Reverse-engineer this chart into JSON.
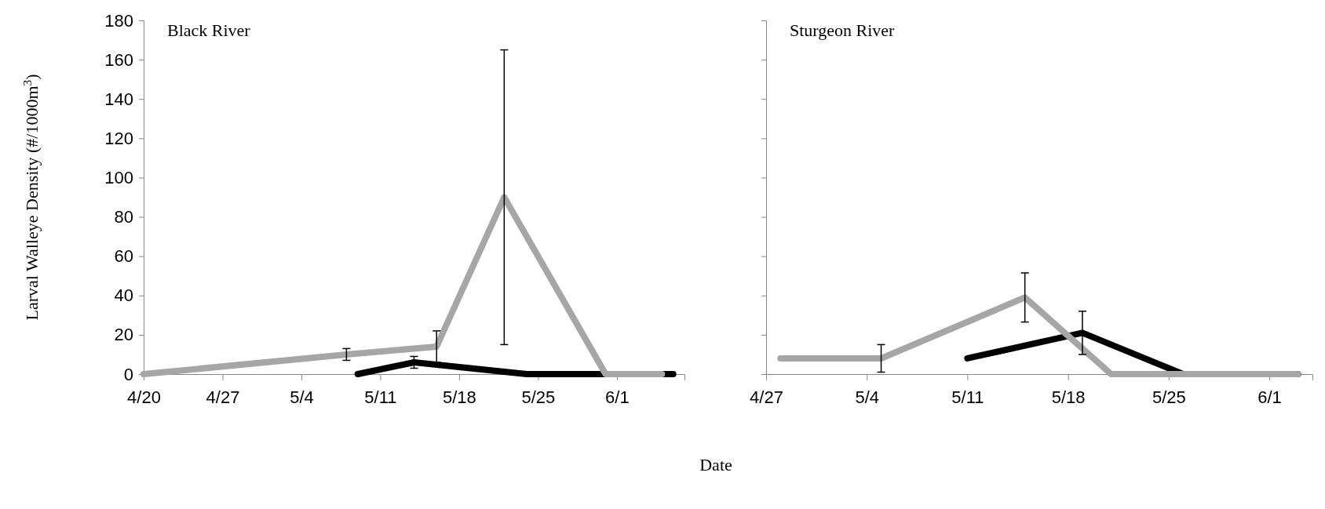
{
  "chart_data": [
    {
      "type": "line",
      "title": "Black River",
      "xlabel": "Date",
      "ylabel": "Larval Walleye Density (#/1000m$^{3}$)",
      "xlim": [
        "--04-20",
        "--06-07"
      ],
      "ylim": [
        0,
        180
      ],
      "yticks": [
        0,
        20,
        40,
        60,
        80,
        100,
        120,
        140,
        160,
        180
      ],
      "xticks": [
        {
          "value": "--04-20",
          "label": "4/20"
        },
        {
          "value": "--04-27",
          "label": "4/27"
        },
        {
          "value": "--05-04",
          "label": "5/4"
        },
        {
          "value": "--05-11",
          "label": "5/11"
        },
        {
          "value": "--05-18",
          "label": "5/18"
        },
        {
          "value": "--05-25",
          "label": "5/25"
        },
        {
          "value": "--06-01",
          "label": "6/1"
        }
      ],
      "grid": false,
      "marker": "none",
      "line_style": "solid",
      "series": [
        {
          "color": "#000000",
          "x": [
            "--05-09",
            "--05-14",
            "--05-24",
            "--06-06"
          ],
          "values": [
            0,
            6,
            0,
            0
          ],
          "errors": [
            null,
            3,
            null,
            null
          ]
        },
        {
          "color": "#a6a6a6",
          "x": [
            "--04-20",
            "--05-08",
            "--05-16",
            "--05-22",
            "--05-31",
            "--06-05"
          ],
          "values": [
            0,
            10,
            14,
            90,
            0,
            0
          ],
          "errors": [
            null,
            3,
            8,
            75,
            null,
            null
          ]
        }
      ]
    },
    {
      "type": "line",
      "title": "Sturgeon River",
      "xlim": [
        "--04-27",
        "--06-04"
      ],
      "ylim": [
        0,
        180
      ],
      "yticks": [
        0,
        20,
        40,
        60,
        80,
        100,
        120,
        140,
        160,
        180
      ],
      "tick_labels": "x",
      "xticks": [
        {
          "value": "--04-27",
          "label": "4/27"
        },
        {
          "value": "--05-04",
          "label": "5/4"
        },
        {
          "value": "--05-11",
          "label": "5/11"
        },
        {
          "value": "--05-18",
          "label": "5/18"
        },
        {
          "value": "--05-25",
          "label": "5/25"
        },
        {
          "value": "--06-01",
          "label": "6/1"
        }
      ],
      "grid": false,
      "marker": "none",
      "line_style": "solid",
      "series": [
        {
          "color": "#000000",
          "x": [
            "--05-11",
            "--05-19",
            "--05-26",
            "--06-03"
          ],
          "values": [
            8,
            21,
            0,
            0
          ],
          "errors": [
            null,
            11,
            null,
            null
          ]
        },
        {
          "color": "#a6a6a6",
          "x": [
            "--04-28",
            "--05-05",
            "--05-15",
            "--05-21",
            "--06-03"
          ],
          "values": [
            8,
            8,
            39,
            0,
            0
          ],
          "errors": [
            null,
            7,
            12.5,
            null,
            null
          ]
        }
      ]
    }
  ]
}
